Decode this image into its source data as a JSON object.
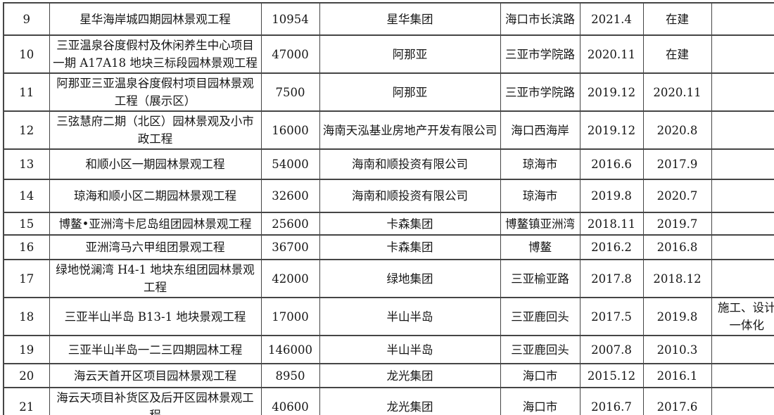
{
  "colors": {
    "border-color": "#454545",
    "text-color": "#161616",
    "bg-color": "#ffffff"
  },
  "table": {
    "rows": [
      {
        "no": "9",
        "project": "星华海岸城四期园林景观工程",
        "area": "10954",
        "company": "星华集团",
        "location": "海口市长滨路",
        "start": "2021.4",
        "end": "在建",
        "note": ""
      },
      {
        "no": "10",
        "project": "三亚温泉谷度假村及休闲养生中心项目一期 A17A18 地块三标段园林景观工程",
        "area": "47000",
        "company": "阿那亚",
        "location": "三亚市学院路",
        "start": "2020.11",
        "end": "在建",
        "note": ""
      },
      {
        "no": "11",
        "project": "阿那亚三亚温泉谷度假村项目园林景观工程（展示区）",
        "area": "7500",
        "company": "阿那亚",
        "location": "三亚市学院路",
        "start": "2019.12",
        "end": "2020.11",
        "note": ""
      },
      {
        "no": "12",
        "project": "三弦慧府二期（北区）园林景观及小市政工程",
        "area": "16000",
        "company": "海南天泓基业房地产开发有限公司",
        "location": "海口西海岸",
        "start": "2019.12",
        "end": "2020.8",
        "note": ""
      },
      {
        "no": "13",
        "project": "和顺小区一期园林景观工程",
        "area": "54000",
        "company": "海南和顺投资有限公司",
        "location": "琼海市",
        "start": "2016.6",
        "end": "2017.9",
        "note": ""
      },
      {
        "no": "14",
        "project": "琼海和顺小区二期园林景观工程",
        "area": "32600",
        "company": "海南和顺投资有限公司",
        "location": "琼海市",
        "start": "2019.8",
        "end": "2020.7",
        "note": ""
      },
      {
        "no": "15",
        "project": "博鳌•亚洲湾卡尼岛组团园林景观工程",
        "area": "25600",
        "company": "卡森集团",
        "location": "博鳌镇亚洲湾",
        "start": "2018.11",
        "end": "2019.7",
        "note": ""
      },
      {
        "no": "16",
        "project": "亚洲湾马六甲组团景观工程",
        "area": "36700",
        "company": "卡森集团",
        "location": "博鳌",
        "start": "2016.2",
        "end": "2016.8",
        "note": ""
      },
      {
        "no": "17",
        "project": "绿地悦澜湾 H4-1 地块东组团园林景观工程",
        "area": "42000",
        "company": "绿地集团",
        "location": "三亚榆亚路",
        "start": "2017.8",
        "end": "2018.12",
        "note": ""
      },
      {
        "no": "18",
        "project": "三亚半山半岛 B13-1 地块景观工程",
        "area": "17000",
        "company": "半山半岛",
        "location": "三亚鹿回头",
        "start": "2017.5",
        "end": "2019.8",
        "note": "施工、设计一体化"
      },
      {
        "no": "19",
        "project": "三亚半山半岛一二三四期园林工程",
        "area": "146000",
        "company": "半山半岛",
        "location": "三亚鹿回头",
        "start": "2007.8",
        "end": "2010.3",
        "note": ""
      },
      {
        "no": "20",
        "project": "海云天首开区项目园林景观工程",
        "area": "8950",
        "company": "龙光集团",
        "location": "海口市",
        "start": "2015.12",
        "end": "2016.1",
        "note": ""
      },
      {
        "no": "21",
        "project": "海云天项目补货区及后开区园林景观工程",
        "area": "40600",
        "company": "龙光集团",
        "location": "海口市",
        "start": "2016.7",
        "end": "2017.6",
        "note": ""
      }
    ]
  }
}
